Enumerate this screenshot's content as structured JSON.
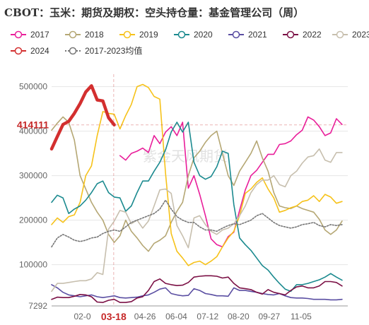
{
  "chart_data": {
    "type": "line",
    "title": "CBOT：玉米：期货及期权：空头持仓量：基金管理公司（周）",
    "xlabel": "",
    "ylabel": "",
    "ylim": [
      7292,
      528000
    ],
    "y_ticks": [
      "500000",
      "400000",
      "300000",
      "200000",
      "100000",
      "7292"
    ],
    "y_tick_values": [
      500000,
      400000,
      300000,
      200000,
      100000,
      7292
    ],
    "x_ticks": [
      "02-0",
      "03-18",
      "04-26",
      "06-04",
      "07-12",
      "08-20",
      "09-27",
      "11-05"
    ],
    "x_tick_values": [
      5.4,
      10.9,
      16.4,
      21.9,
      27.4,
      32.8,
      38.2,
      43.8
    ],
    "x_range": [
      0,
      52
    ],
    "highlight": {
      "x_label": "03-18",
      "y_label": "414111",
      "x": 10.9,
      "y": 414111,
      "color": "#c62828"
    },
    "watermark": "紫金天风期货",
    "grid": "horizontal",
    "legend_position": "top",
    "series": [
      {
        "name": "2017",
        "color": "#e91e9a",
        "width": 1.6,
        "dashed": false,
        "x": [
          12,
          13,
          14,
          15,
          16,
          17,
          18,
          19,
          20,
          21,
          22,
          23,
          24,
          25,
          26,
          27,
          28,
          29,
          30,
          31,
          32,
          33,
          34,
          35,
          36,
          37,
          38,
          39,
          40,
          41,
          42,
          43,
          44,
          45,
          46,
          47,
          48,
          49,
          50,
          51
        ],
        "values": [
          345000,
          335000,
          350000,
          355000,
          362000,
          352000,
          390000,
          372000,
          398000,
          410000,
          390000,
          420000,
          272000,
          300000,
          258000,
          210000,
          158000,
          145000,
          140000,
          163000,
          173000,
          222000,
          268000,
          300000,
          312000,
          330000,
          348000,
          348000,
          370000,
          372000,
          378000,
          392000,
          402000,
          432000,
          425000,
          410000,
          390000,
          396000,
          428000,
          415000
        ]
      },
      {
        "name": "2018",
        "color": "#b5a774",
        "width": 1.6,
        "dashed": false,
        "x": [
          0,
          1,
          2,
          3,
          4,
          5,
          6,
          7,
          8,
          9,
          10,
          11,
          12,
          13,
          14,
          15,
          16,
          17,
          18,
          19,
          20,
          21,
          22,
          23,
          24,
          25,
          26,
          27,
          28,
          29,
          30,
          31,
          32,
          33,
          34,
          35,
          36,
          37,
          38,
          39,
          40,
          41,
          42,
          43,
          44,
          45,
          46,
          47,
          48,
          49,
          50,
          51
        ],
        "values": [
          402000,
          418000,
          432000,
          420000,
          380000,
          300000,
          270000,
          240000,
          218000,
          200000,
          168000,
          150000,
          165000,
          200000,
          175000,
          160000,
          143000,
          130000,
          148000,
          155000,
          165000,
          195000,
          220000,
          240000,
          300000,
          340000,
          355000,
          375000,
          390000,
          400000,
          350000,
          300000,
          278000,
          310000,
          330000,
          350000,
          378000,
          340000,
          310000,
          262000,
          232000,
          228000,
          226000,
          232000,
          226000,
          222000,
          218000,
          202000,
          178000,
          168000,
          178000,
          198000
        ]
      },
      {
        "name": "2019",
        "color": "#f6c21a",
        "width": 1.6,
        "dashed": false,
        "x": [
          0,
          1,
          2,
          3,
          4,
          5,
          6,
          7,
          8,
          9,
          10,
          11,
          12,
          13,
          14,
          15,
          16,
          17,
          18,
          19,
          20,
          21,
          22,
          23,
          24,
          25,
          26,
          27,
          28,
          29,
          30,
          31,
          32,
          33,
          34,
          35,
          36,
          37,
          38,
          39,
          40,
          41,
          42,
          43,
          44,
          45,
          46,
          47,
          48,
          49,
          50,
          51
        ],
        "values": [
          190000,
          205000,
          195000,
          208000,
          212000,
          240000,
          300000,
          322000,
          390000,
          444000,
          440000,
          438000,
          405000,
          435000,
          460000,
          500000,
          505000,
          498000,
          478000,
          472000,
          305000,
          170000,
          130000,
          115000,
          98000,
          105000,
          108000,
          100000,
          108000,
          118000,
          140000,
          160000,
          175000,
          210000,
          260000,
          270000,
          285000,
          295000,
          270000,
          250000,
          218000,
          222000,
          228000,
          232000,
          242000,
          245000,
          255000,
          242000,
          258000,
          252000,
          238000,
          242000
        ]
      },
      {
        "name": "2020",
        "color": "#1b8a8f",
        "width": 1.6,
        "dashed": false,
        "x": [
          0,
          1,
          2,
          3,
          4,
          5,
          6,
          7,
          8,
          9,
          10,
          11,
          12,
          13,
          14,
          15,
          16,
          17,
          18,
          19,
          20,
          21,
          22,
          23,
          24,
          25,
          26,
          27,
          28,
          29,
          30,
          31,
          32,
          33,
          34,
          35,
          36,
          37,
          38,
          39,
          40,
          41,
          42,
          43,
          44,
          45,
          46,
          47,
          48,
          49,
          50,
          51
        ],
        "values": [
          240000,
          256000,
          250000,
          215000,
          225000,
          232000,
          245000,
          262000,
          282000,
          288000,
          262000,
          252000,
          250000,
          220000,
          232000,
          262000,
          288000,
          288000,
          310000,
          330000,
          358000,
          398000,
          420000,
          398000,
          420000,
          330000,
          300000,
          292000,
          298000,
          320000,
          355000,
          350000,
          235000,
          160000,
          145000,
          132000,
          115000,
          98000,
          88000,
          72000,
          58000,
          45000,
          40000,
          55000,
          55000,
          58000,
          62000,
          66000,
          72000,
          80000,
          72000,
          65000
        ]
      },
      {
        "name": "2021",
        "color": "#5a4ea2",
        "width": 1.6,
        "dashed": false,
        "x": [
          0,
          1,
          2,
          3,
          4,
          5,
          6,
          7,
          8,
          9,
          10,
          11,
          12,
          13,
          14,
          15,
          16,
          17,
          18,
          19,
          20,
          21,
          22,
          23,
          24,
          25,
          26,
          27,
          28,
          29,
          30,
          31,
          32,
          33,
          34,
          35,
          36,
          37,
          38,
          39,
          40,
          41,
          42,
          43,
          44,
          45,
          46,
          47,
          48,
          49,
          50,
          51
        ],
        "values": [
          55000,
          48000,
          38000,
          32000,
          30000,
          28000,
          30000,
          32000,
          28000,
          26000,
          28000,
          30000,
          26000,
          25000,
          26000,
          27000,
          30000,
          32000,
          38000,
          45000,
          48000,
          35000,
          32000,
          30000,
          31000,
          46000,
          42000,
          35000,
          33000,
          30000,
          30000,
          29000,
          48000,
          42000,
          42000,
          40000,
          38000,
          35000,
          33000,
          32000,
          35000,
          30000,
          26000,
          25000,
          25000,
          24000,
          22000,
          22000,
          22000,
          21000,
          21000,
          22000
        ]
      },
      {
        "name": "2022",
        "color": "#7b1045",
        "width": 1.6,
        "dashed": false,
        "x": [
          0,
          1,
          2,
          3,
          4,
          5,
          6,
          7,
          8,
          9,
          10,
          11,
          12,
          13,
          14,
          15,
          16,
          17,
          18,
          19,
          20,
          21,
          22,
          23,
          24,
          25,
          26,
          27,
          28,
          29,
          30,
          31,
          32,
          33,
          34,
          35,
          36,
          37,
          38,
          39,
          40,
          41,
          42,
          43,
          44,
          45,
          46,
          47,
          48,
          49,
          50,
          51
        ],
        "values": [
          22000,
          27000,
          26000,
          26000,
          29000,
          33000,
          32000,
          28000,
          16000,
          15000,
          20000,
          22000,
          15000,
          15000,
          17000,
          25000,
          28000,
          42000,
          62000,
          68000,
          58000,
          55000,
          53000,
          54000,
          60000,
          72000,
          74000,
          75000,
          75000,
          74000,
          70000,
          72000,
          58000,
          48000,
          46000,
          44000,
          38000,
          34000,
          44000,
          38000,
          35000,
          32000,
          42000,
          50000,
          52000,
          48000,
          48000,
          52000,
          62000,
          62000,
          60000,
          52000
        ]
      },
      {
        "name": "2023",
        "color": "#c7bfae",
        "width": 1.6,
        "dashed": false,
        "x": [
          0,
          1,
          2,
          3,
          4,
          5,
          6,
          7,
          8,
          9,
          10,
          11,
          12,
          13,
          14,
          15,
          16,
          17,
          18,
          19,
          20,
          21,
          22,
          23,
          24,
          25,
          26,
          27,
          28,
          29,
          30,
          31,
          32,
          33,
          34,
          35,
          36,
          37,
          38,
          39,
          40,
          41,
          42,
          43,
          44,
          45,
          46,
          47,
          48,
          49,
          50,
          51
        ],
        "values": [
          40000,
          58000,
          58000,
          60000,
          62000,
          64000,
          64000,
          68000,
          82000,
          78000,
          180000,
          198000,
          222000,
          218000,
          192000,
          200000,
          182000,
          198000,
          232000,
          268000,
          270000,
          260000,
          188000,
          165000,
          138000,
          205000,
          210000,
          190000,
          175000,
          168000,
          178000,
          182000,
          192000,
          210000,
          232000,
          262000,
          280000,
          290000,
          290000,
          300000,
          280000,
          275000,
          300000,
          310000,
          328000,
          342000,
          345000,
          360000,
          335000,
          330000,
          352000,
          352000
        ]
      },
      {
        "name": "2024",
        "color": "#d32f2f",
        "width": 4.5,
        "dashed": false,
        "x": [
          0,
          1,
          2,
          3,
          4,
          5,
          6,
          7,
          8,
          9,
          10,
          11
        ],
        "values": [
          360000,
          388000,
          415000,
          422000,
          440000,
          462000,
          488000,
          502000,
          470000,
          468000,
          430000,
          414111
        ]
      },
      {
        "name": "2017-2023均值",
        "color": "#777777",
        "width": 1.6,
        "dashed": true,
        "x": [
          0,
          1,
          2,
          3,
          4,
          5,
          6,
          7,
          8,
          9,
          10,
          11,
          12,
          13,
          14,
          15,
          16,
          17,
          18,
          19,
          20,
          21,
          22,
          23,
          24,
          25,
          26,
          27,
          28,
          29,
          30,
          31,
          32,
          33,
          34,
          35,
          36,
          37,
          38,
          39,
          40,
          41,
          42,
          43,
          44,
          45,
          46,
          47,
          48,
          49,
          50,
          51
        ],
        "values": [
          140000,
          160000,
          168000,
          162000,
          155000,
          152000,
          155000,
          160000,
          162000,
          170000,
          175000,
          178000,
          175000,
          185000,
          195000,
          200000,
          205000,
          210000,
          215000,
          225000,
          245000,
          225000,
          208000,
          200000,
          195000,
          195000,
          185000,
          178000,
          178000,
          175000,
          182000,
          188000,
          192000,
          190000,
          195000,
          200000,
          210000,
          215000,
          205000,
          195000,
          188000,
          185000,
          182000,
          185000,
          190000,
          192000,
          195000,
          188000,
          185000,
          190000,
          188000,
          190000
        ]
      }
    ]
  }
}
